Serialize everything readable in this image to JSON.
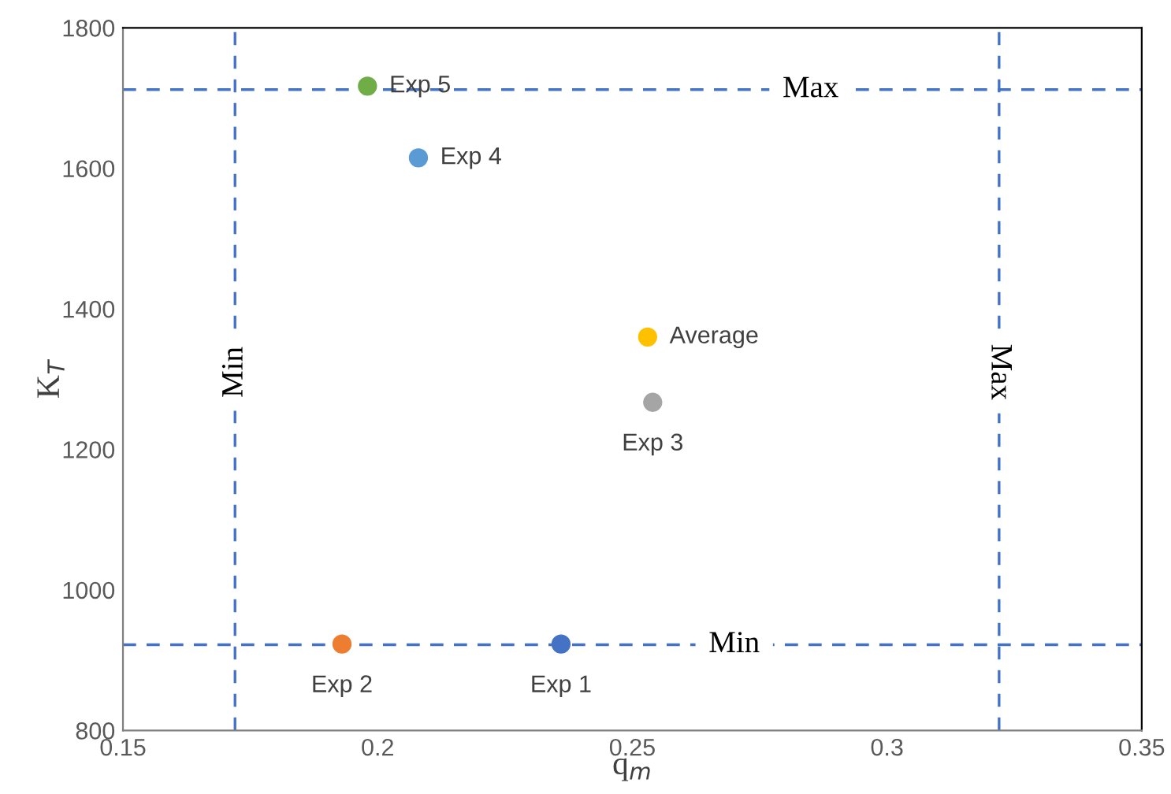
{
  "chart_data": {
    "type": "scatter",
    "xlabel": "q$_{m}$",
    "ylabel": "K$_{T}$",
    "xlim": [
      0.15,
      0.35
    ],
    "xticks": [
      0.15,
      0.2,
      0.25,
      0.3,
      0.35
    ],
    "ylim": [
      800,
      1800
    ],
    "yticks": [
      800,
      1000,
      1200,
      1400,
      1600,
      1800
    ],
    "grid": false,
    "legend": false,
    "marker": "circle",
    "series": [
      {
        "name": "Exp 1",
        "color": "#4472c4",
        "x": [
          0.236
        ],
        "values": [
          923
        ]
      },
      {
        "name": "Exp 2",
        "color": "#ed7d31",
        "x": [
          0.193
        ],
        "values": [
          923
        ]
      },
      {
        "name": "Exp 3",
        "color": "#a5a5a5",
        "x": [
          0.254
        ],
        "values": [
          1267
        ]
      },
      {
        "name": "Average",
        "color": "#ffc000",
        "x": [
          0.253
        ],
        "values": [
          1360
        ]
      },
      {
        "name": "Exp 4",
        "color": "#5b9bd5",
        "x": [
          0.208
        ],
        "values": [
          1615
        ]
      },
      {
        "name": "Exp 5",
        "color": "#70ad47",
        "x": [
          0.198
        ],
        "values": [
          1717
        ]
      }
    ],
    "ref_lines": [
      {
        "axis": "y",
        "value": 1712,
        "label": "Max",
        "color": "#4472c4",
        "line_style": "dashed"
      },
      {
        "axis": "y",
        "value": 922,
        "label": "Min",
        "color": "#4472c4",
        "line_style": "dashed"
      },
      {
        "axis": "x",
        "value": 0.172,
        "label": "Min",
        "color": "#4472c4",
        "line_style": "dashed"
      },
      {
        "axis": "x",
        "value": 0.322,
        "label": "Max",
        "color": "#4472c4",
        "line_style": "dashed"
      }
    ]
  }
}
